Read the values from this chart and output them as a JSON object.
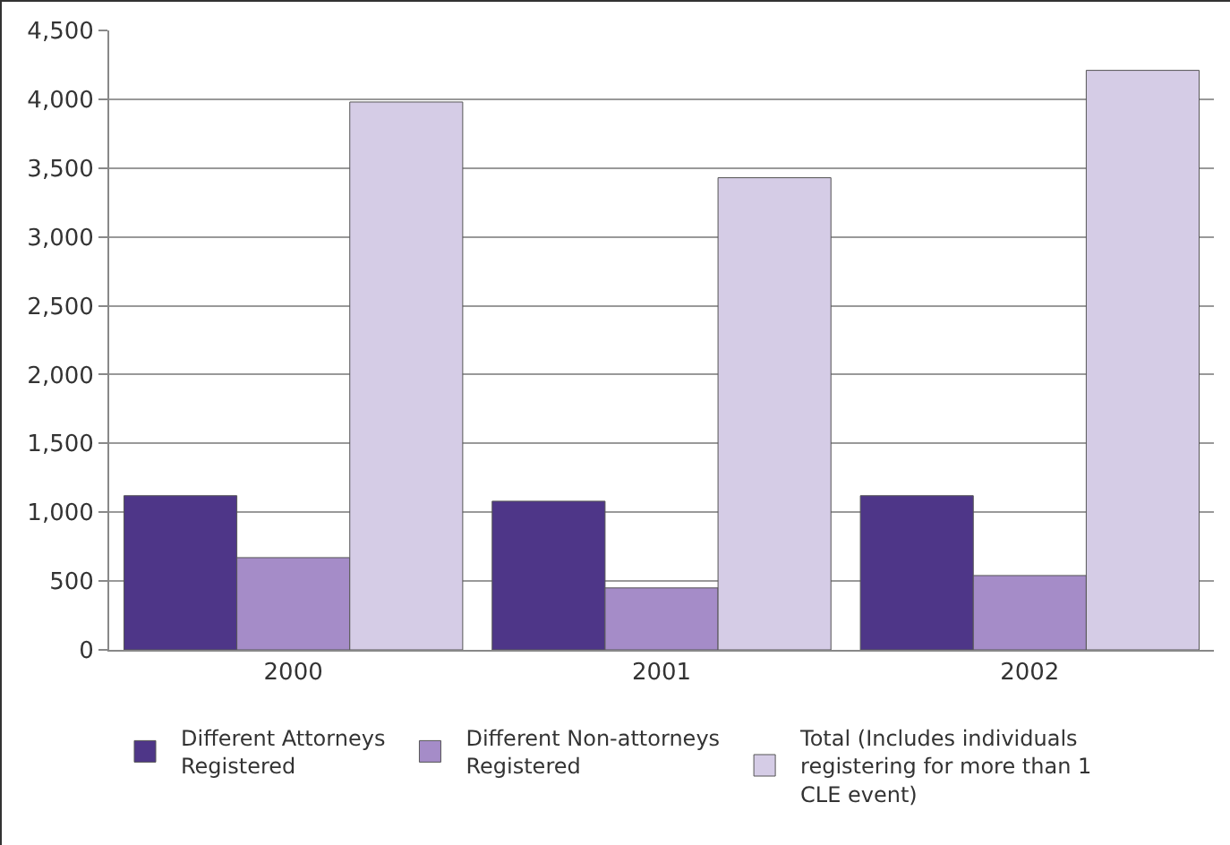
{
  "chart_data": {
    "type": "bar",
    "categories": [
      "2000",
      "2001",
      "2002"
    ],
    "series": [
      {
        "name": "Different Attorneys Registered",
        "color": "#4e3688",
        "values": [
          1120,
          1080,
          1120
        ]
      },
      {
        "name": "Different Non-attorneys Registered",
        "color": "#a58cc8",
        "values": [
          670,
          450,
          540
        ]
      },
      {
        "name": "Total (Includes individuals registering for more than 1 CLE event)",
        "color": "#d5cce6",
        "values": [
          3980,
          3430,
          4210
        ]
      }
    ],
    "ylim": [
      0,
      4500
    ],
    "yticks": [
      {
        "value": 0,
        "label": "0"
      },
      {
        "value": 500,
        "label": "500"
      },
      {
        "value": 1000,
        "label": "1,000"
      },
      {
        "value": 1500,
        "label": "1,500"
      },
      {
        "value": 2000,
        "label": "2,000"
      },
      {
        "value": 2500,
        "label": "2,500"
      },
      {
        "value": 3000,
        "label": "3,000"
      },
      {
        "value": 3500,
        "label": "3,500"
      },
      {
        "value": 4000,
        "label": "4,000"
      },
      {
        "value": 4500,
        "label": "4,500"
      }
    ],
    "grid": "y",
    "legend": "bottom"
  }
}
